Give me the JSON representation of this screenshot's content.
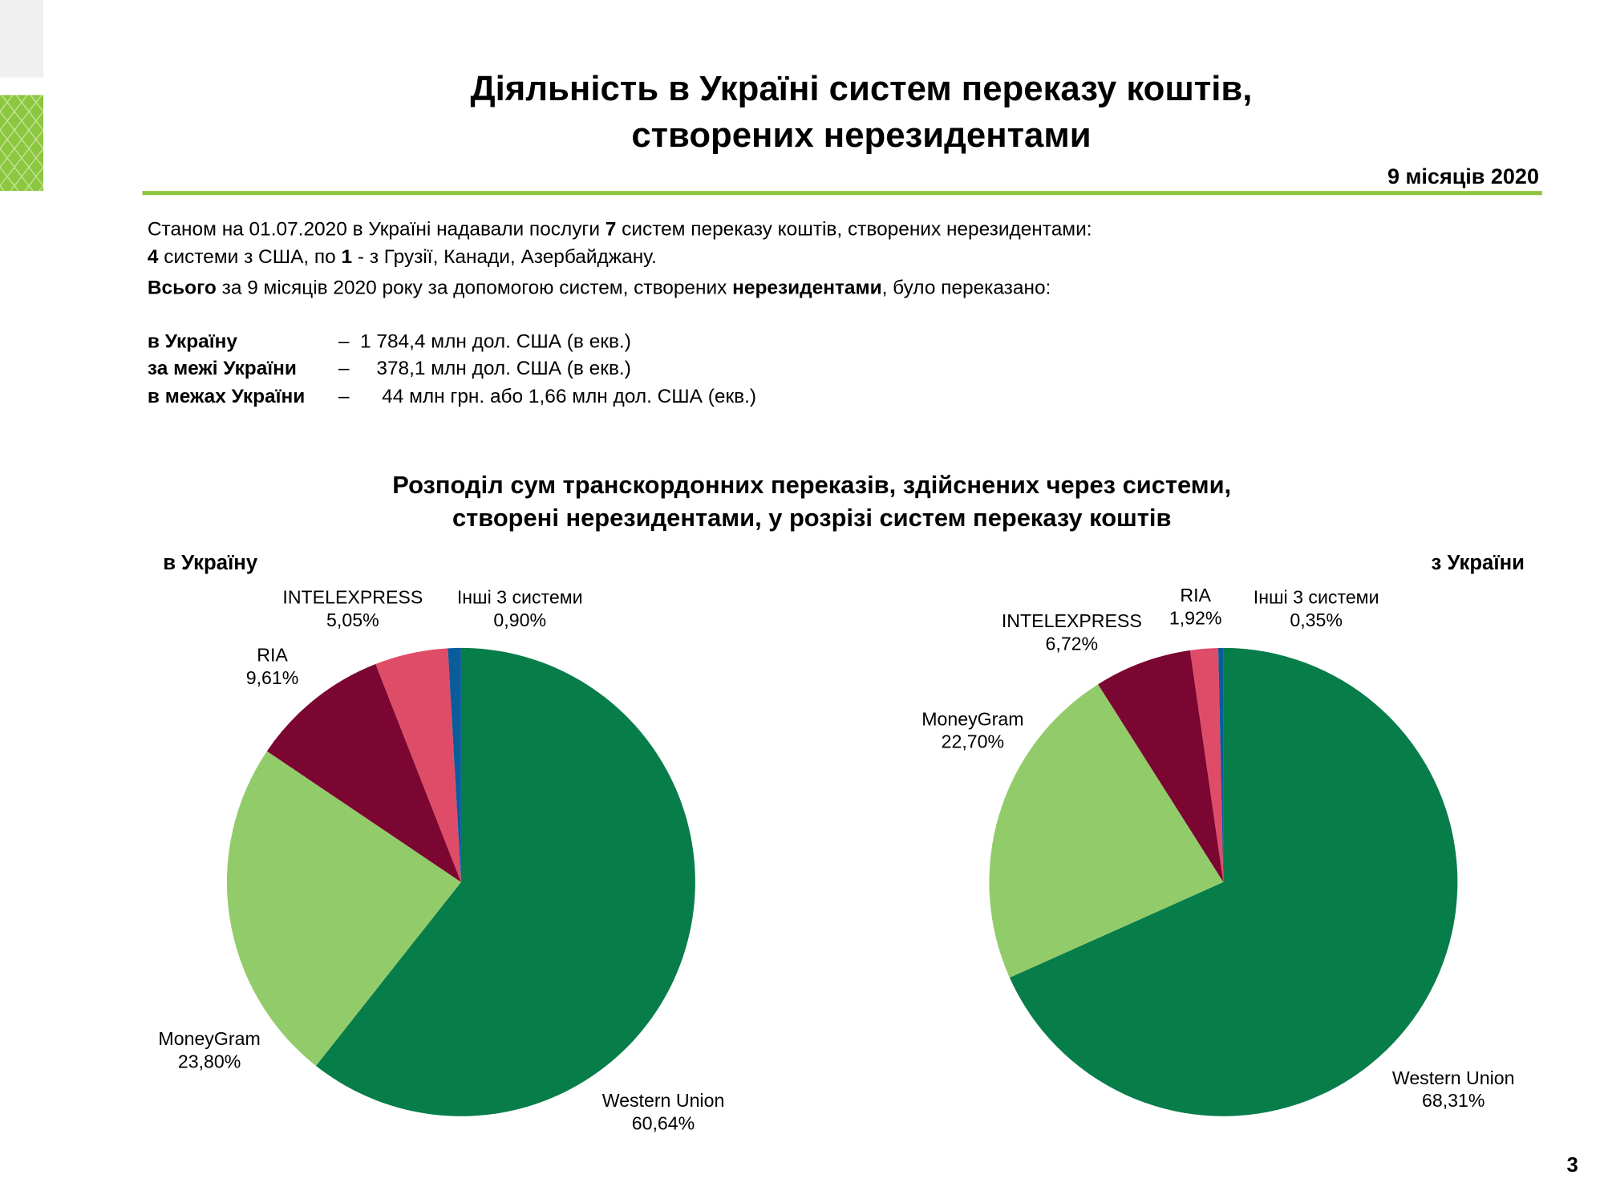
{
  "header": {
    "title": [
      "Діяльність в Україні систем переказу коштів,",
      "створених нерезидентами"
    ],
    "period": "9 місяців 2020"
  },
  "intro": [
    [
      {
        "text": "Станом на 01.07.2020 в Україні надавали послуги "
      },
      {
        "text": "7",
        "bold": true
      },
      {
        "text": " систем переказу коштів, створених нерезидентами:"
      }
    ],
    [
      {
        "text": "4",
        "bold": true
      },
      {
        "text": " системи з США, по "
      },
      {
        "text": "1",
        "bold": true
      },
      {
        "text": " - з Грузії, Канади, Азербайджану."
      }
    ],
    [
      {
        "text": "Всього",
        "bold": true
      },
      {
        "text": " за 9 місяців 2020 року за допомогою систем, створених "
      },
      {
        "text": "нерезидентами",
        "bold": true
      },
      {
        "text": ", було переказано:"
      }
    ]
  ],
  "transfers": [
    {
      "label": "в Україну",
      "text": "–  1 784,4 млн дол. США (в екв.)"
    },
    {
      "label": "за межі України",
      "text": "–     378,1 млн дол. США (в екв.)"
    },
    {
      "label": "в межах України",
      "text": "–      44 млн грн. або 1,66 млн дол. США (екв.)"
    }
  ],
  "section_title": [
    "Розподіл сум транскордонних переказів, здійснених через системи,",
    "створені нерезидентами, у розрізі систем переказу коштів"
  ],
  "chart_data": [
    {
      "type": "pie",
      "title": "в Україну",
      "categories": [
        "Western Union",
        "MoneyGram",
        "RIA",
        "INTELEXPRESS",
        "Інші 3 системи"
      ],
      "values": [
        60.64,
        23.8,
        9.61,
        5.05,
        0.9
      ],
      "value_labels": [
        "60,64%",
        "23,80%",
        "9,61%",
        "5,05%",
        "0,90%"
      ],
      "colors": [
        "#077d4a",
        "#92cb6a",
        "#7b0631",
        "#df4c68",
        "#0a5c9a"
      ]
    },
    {
      "type": "pie",
      "title": "з України",
      "categories": [
        "Western Union",
        "MoneyGram",
        "INTELEXPRESS",
        "RIA",
        "Інші 3 системи"
      ],
      "values": [
        68.31,
        22.7,
        6.72,
        1.92,
        0.35
      ],
      "value_labels": [
        "68,31%",
        "22,70%",
        "6,72%",
        "1,92%",
        "0,35%"
      ],
      "colors": [
        "#077d4a",
        "#92cb6a",
        "#7b0631",
        "#df4c68",
        "#0a5c9a"
      ]
    }
  ],
  "page_number": "3"
}
